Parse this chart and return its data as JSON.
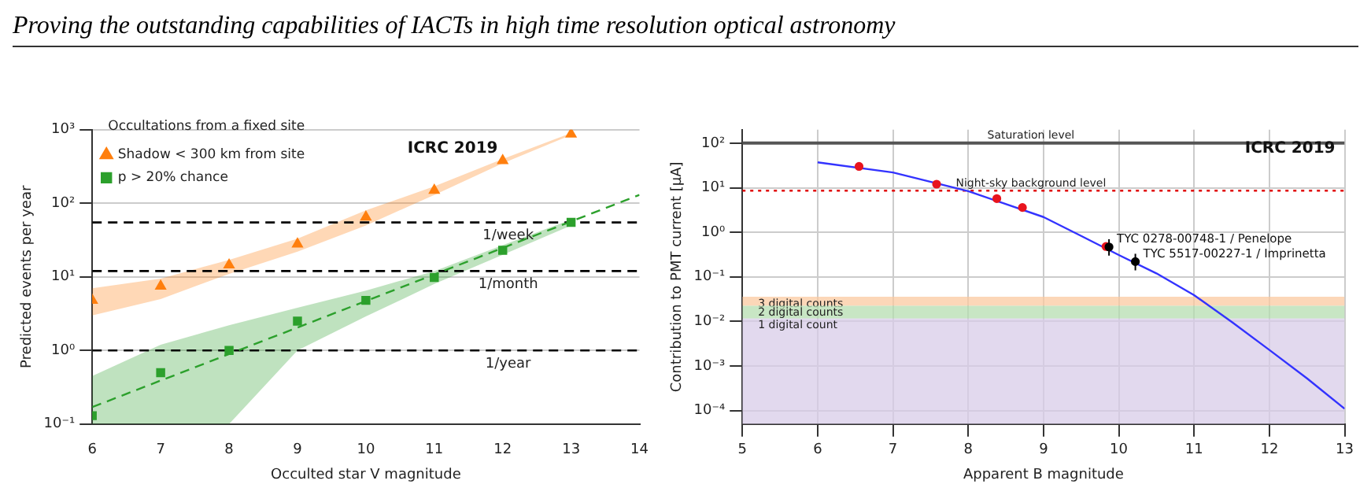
{
  "chart_data": [
    {
      "type": "scatter",
      "title": "Proving the outstanding capabilities of IACTs in high time resolution optical astronomy",
      "xlabel": "Occulted star V magnitude",
      "ylabel": "Predicted events per year",
      "legend_title": "Occultations from a fixed site",
      "legend": "top left",
      "log": "y",
      "grid": "y",
      "xlim": [
        6,
        14
      ],
      "xticks": [
        6,
        7,
        8,
        9,
        10,
        11,
        12,
        13,
        14
      ],
      "ylim": [
        0.1,
        1000
      ],
      "yticks": [
        {
          "value": 0.1,
          "label": "10⁻¹"
        },
        {
          "value": 1,
          "label": "10⁰"
        },
        {
          "value": 10,
          "label": "10¹"
        },
        {
          "value": 100,
          "label": "10²"
        },
        {
          "value": 1000,
          "label": "10³"
        }
      ],
      "series": [
        {
          "name": "Shadow < 300 km from site",
          "marker": "triangle",
          "color": "#ff7f0e",
          "x": [
            6,
            7,
            8,
            9,
            10,
            11,
            12,
            13
          ],
          "values": [
            4.8,
            7.5,
            14.5,
            28,
            65,
            150,
            380,
            870
          ],
          "lower": [
            3,
            5,
            11,
            22,
            50,
            130,
            350,
            850
          ],
          "upper": [
            7,
            9.5,
            17,
            33,
            80,
            170,
            400,
            900
          ]
        },
        {
          "name": "p > 20% chance",
          "marker": "square",
          "color": "#2ca02c",
          "x": [
            6,
            7,
            8,
            9,
            10,
            11,
            12,
            13
          ],
          "values": [
            0.13,
            0.5,
            1,
            2.5,
            4.8,
            9.8,
            23,
            55
          ],
          "lower": [
            0.1,
            0.1,
            0.1,
            1,
            2.9,
            8,
            20,
            50
          ],
          "upper": [
            0.45,
            1.2,
            2.2,
            3.8,
            6.5,
            12,
            27,
            60
          ]
        },
        {
          "type": "line",
          "line_style": "dashed",
          "color": "#2ca02c",
          "x": [
            6,
            14
          ],
          "values": [
            0.17,
            130
          ]
        }
      ],
      "ref_lines": [
        {
          "axis": "y",
          "value": 55,
          "label": "1/week",
          "color": "#000000",
          "line_style": "dashed"
        },
        {
          "axis": "y",
          "value": 12,
          "label": "1/month",
          "color": "#000000",
          "line_style": "dashed"
        },
        {
          "axis": "y",
          "value": 1,
          "label": "1/year",
          "color": "#000000",
          "line_style": "dashed"
        }
      ],
      "annotations": [
        "ICRC 2019"
      ]
    },
    {
      "type": "line",
      "xlabel": "Apparent B magnitude",
      "ylabel": "Contribution to PMT current [μA]",
      "log": "y",
      "grid": true,
      "legend": false,
      "xlim": [
        5,
        13
      ],
      "xticks": [
        5,
        6,
        7,
        8,
        9,
        10,
        11,
        12,
        13
      ],
      "ylim": [
        5e-05,
        200
      ],
      "yticks": [
        {
          "value": 0.0001,
          "label": "10⁻⁴"
        },
        {
          "value": 0.001,
          "label": "10⁻³"
        },
        {
          "value": 0.01,
          "label": "10⁻²"
        },
        {
          "value": 0.1,
          "label": "10⁻¹"
        },
        {
          "value": 1,
          "label": "10⁰"
        },
        {
          "value": 10,
          "label": "10¹"
        },
        {
          "value": 100,
          "label": "10²"
        }
      ],
      "series": [
        {
          "color": "#3333ff",
          "x": [
            6,
            7,
            8,
            9,
            9.5,
            10,
            10.5,
            11,
            11.5,
            12,
            12.5,
            13
          ],
          "values": [
            37,
            22,
            8.4,
            2.2,
            0.83,
            0.31,
            0.12,
            0.039,
            0.0098,
            0.0023,
            0.00053,
            0.00011
          ]
        },
        {
          "type": "scatter",
          "marker": "circle",
          "color": "#e8141e",
          "x": [
            6.55,
            7.58,
            8.38,
            8.72,
            9.83
          ],
          "values": [
            30,
            12,
            5.7,
            3.6,
            0.48
          ]
        },
        {
          "type": "scatter",
          "marker": "circle",
          "color": "#000000",
          "x": [
            9.87,
            10.22
          ],
          "values": [
            0.47,
            0.22
          ],
          "errors": [
            [
              0.3,
              0.7
            ],
            [
              0.14,
              0.33
            ]
          ]
        }
      ],
      "ref_lines": [
        {
          "axis": "y",
          "value": 100,
          "label": "Saturation level",
          "color": "#555555",
          "line_style": "solid"
        },
        {
          "axis": "y",
          "value": 8.6,
          "label": "Night-sky background level",
          "color": "#e00000",
          "line_style": "dotted"
        }
      ],
      "bands": [
        {
          "axis": "y",
          "from": 0.0224,
          "to": 0.036,
          "label": "3 digital counts",
          "color": "#fbc9a0"
        },
        {
          "axis": "y",
          "from": 0.0116,
          "to": 0.0224,
          "label": "2 digital counts",
          "color": "#b5ddb0"
        },
        {
          "axis": "y",
          "from": 5e-05,
          "to": 0.0116,
          "label": "1 digital count",
          "color": "#d8cce8"
        }
      ],
      "annotations": [
        {
          "text": "TYC 0278-00748-1 / Penelope",
          "x": 9.87,
          "y": 0.47
        },
        {
          "text": "TYC 5517-00227-1 / Imprinetta",
          "x": 10.22,
          "y": 0.22
        },
        "ICRC 2019"
      ]
    }
  ]
}
